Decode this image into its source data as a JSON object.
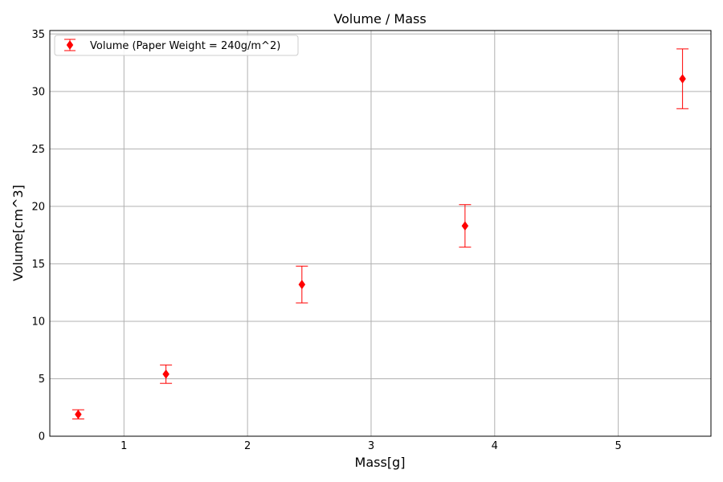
{
  "chart_data": {
    "type": "scatter",
    "title": "Volume / Mass",
    "xlabel": "Mass[g]",
    "ylabel": "Volume[cm^3]",
    "xlim": [
      0.4,
      5.75
    ],
    "ylim": [
      0,
      35.3
    ],
    "xticks": [
      1,
      2,
      3,
      4,
      5
    ],
    "yticks": [
      0,
      5,
      10,
      15,
      20,
      25,
      30,
      35
    ],
    "grid": true,
    "legend_position": "top-left",
    "series": [
      {
        "name": "Volume (Paper Weight = 240g/m^2)",
        "color": "#ff0000",
        "marker": "diamond",
        "x": [
          0.63,
          1.34,
          2.44,
          3.76,
          5.52
        ],
        "y": [
          1.9,
          5.4,
          13.2,
          18.3,
          31.1
        ],
        "yerr": [
          0.4,
          0.8,
          1.6,
          1.85,
          2.6
        ]
      }
    ]
  }
}
